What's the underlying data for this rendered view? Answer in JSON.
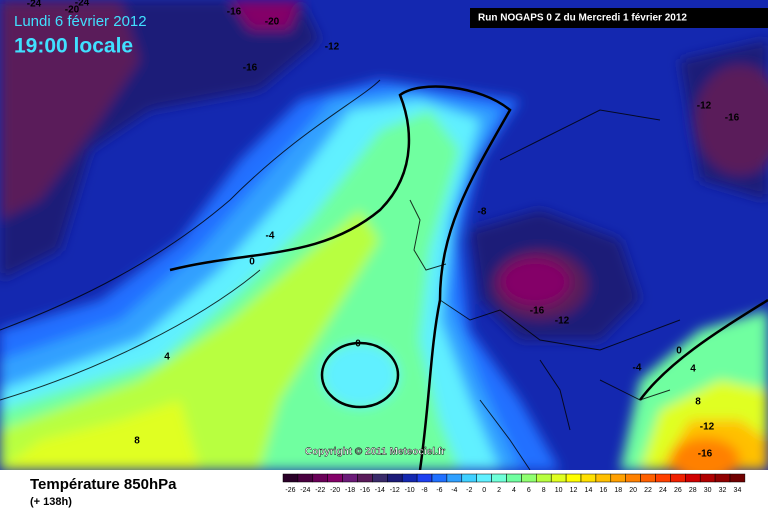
{
  "header": {
    "date": "Lundi 6 février 2012",
    "time": "19:00 locale",
    "run": "Run NOGAPS 0 Z du Mercredi 1 février 2012"
  },
  "copyright": "Copyright © 2011 Meteociel.fr",
  "footer": {
    "title": "Température 850hPa",
    "lead": "(+ 138h)"
  },
  "legend": {
    "values": [
      -26,
      -24,
      -22,
      -20,
      -18,
      -16,
      -14,
      -12,
      -10,
      -8,
      -6,
      -4,
      -2,
      0,
      2,
      4,
      6,
      8,
      10,
      12,
      14,
      16,
      18,
      20,
      22,
      24,
      26,
      28,
      30,
      32,
      34
    ],
    "colors": [
      "#2a0028",
      "#4a0040",
      "#6a0058",
      "#840068",
      "#6c1a78",
      "#5a1a5a",
      "#3a2a6a",
      "#1c1a78",
      "#1428b0",
      "#1e40f0",
      "#2070ff",
      "#30a0ff",
      "#40d0ff",
      "#60f0ff",
      "#70ffd8",
      "#70ffa0",
      "#90ff70",
      "#b8ff40",
      "#e0ff20",
      "#ffff00",
      "#ffe000",
      "#ffc000",
      "#ffa000",
      "#ff8000",
      "#ff6000",
      "#ff4000",
      "#f02000",
      "#d00000",
      "#b00000",
      "#900000",
      "#700000"
    ]
  },
  "contour_labels": [
    "-24",
    "-20",
    "-24",
    "-16",
    "-20",
    "-12",
    "-16",
    "-12",
    "-16",
    "-8",
    "-4",
    "0",
    "4",
    "8",
    "0",
    "-16",
    "-12",
    "0",
    "4",
    "-4",
    "8",
    "-12",
    "-16"
  ]
}
